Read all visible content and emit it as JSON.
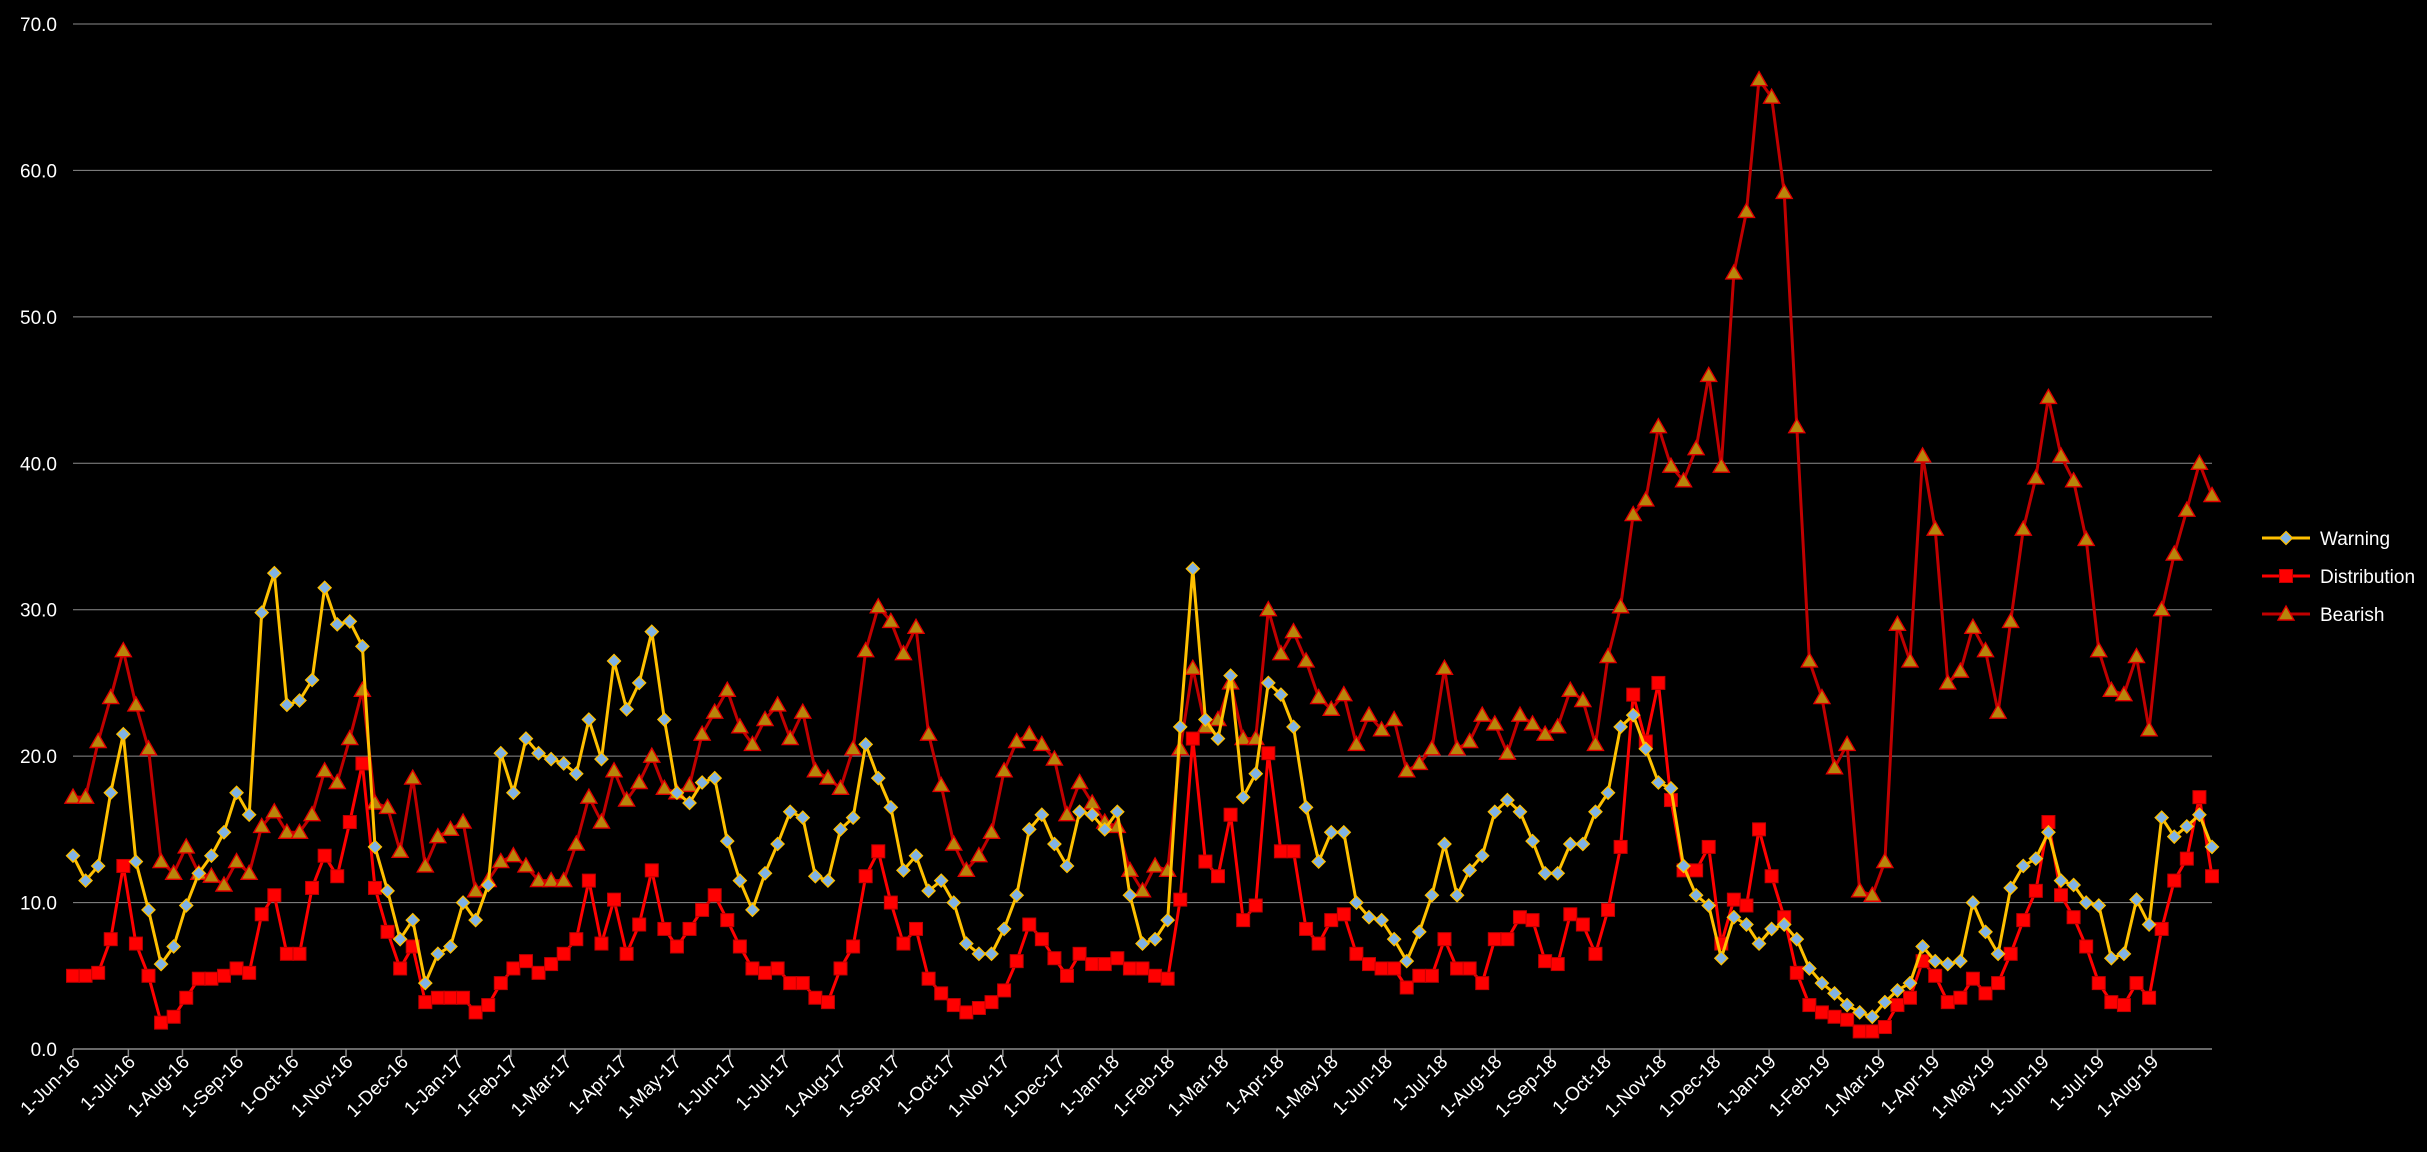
{
  "chart_data": {
    "type": "line",
    "title": "",
    "xlabel": "",
    "ylabel": "",
    "ylim": [
      0,
      70
    ],
    "yticks": [
      "0.0",
      "10.0",
      "20.0",
      "30.0",
      "40.0",
      "50.0",
      "60.0",
      "70.0"
    ],
    "grid": "horizontal",
    "legend_position": "right",
    "x_tick_labels": [
      "1-Jun-16",
      "1-Jul-16",
      "1-Aug-16",
      "1-Sep-16",
      "1-Oct-16",
      "1-Nov-16",
      "1-Dec-16",
      "1-Jan-17",
      "1-Feb-17",
      "1-Mar-17",
      "1-Apr-17",
      "1-May-17",
      "1-Jun-17",
      "1-Jul-17",
      "1-Aug-17",
      "1-Sep-17",
      "1-Oct-17",
      "1-Nov-17",
      "1-Dec-17",
      "1-Jan-18",
      "1-Feb-18",
      "1-Mar-18",
      "1-Apr-18",
      "1-May-18",
      "1-Jun-18",
      "1-Jul-18",
      "1-Aug-18",
      "1-Sep-18",
      "1-Oct-18",
      "1-Nov-18",
      "1-Dec-18",
      "1-Jan-19",
      "1-Feb-19",
      "1-Mar-19",
      "1-Apr-19",
      "1-May-19",
      "1-Jun-19",
      "1-Jul-19",
      "1-Aug-19"
    ],
    "x_tick_positions": [
      0,
      4.4,
      8.7,
      13.0,
      17.4,
      21.7,
      26.1,
      30.5,
      34.8,
      39.1,
      43.5,
      47.8,
      52.2,
      56.5,
      60.9,
      65.2,
      69.6,
      73.9,
      78.3,
      82.6,
      87.0,
      91.3,
      95.7,
      100.0,
      104.3,
      108.7,
      113.0,
      117.4,
      121.7,
      126.1,
      130.4,
      134.8,
      139.1,
      143.5,
      147.8,
      152.2,
      156.5,
      160.9,
      165.2
    ],
    "x_max": 170,
    "series": [
      {
        "name": "Warning",
        "color": "#ffc000",
        "marker": "diamond",
        "values": [
          13.2,
          11.5,
          12.5,
          17.5,
          21.5,
          12.8,
          9.5,
          5.8,
          7.0,
          9.8,
          12.0,
          13.2,
          14.8,
          17.5,
          16.0,
          29.8,
          32.5,
          23.5,
          23.8,
          25.2,
          31.5,
          29.0,
          29.2,
          27.5,
          13.8,
          10.8,
          7.5,
          8.8,
          4.5,
          6.5,
          7.0,
          10.0,
          8.8,
          11.2,
          20.2,
          17.5,
          21.2,
          20.2,
          19.8,
          19.5,
          18.8,
          22.5,
          19.8,
          26.5,
          23.2,
          25.0,
          28.5,
          22.5,
          17.5,
          16.8,
          18.2,
          18.5,
          14.2,
          11.5,
          9.5,
          12.0,
          14.0,
          16.2,
          15.8,
          11.8,
          11.5,
          15.0,
          15.8,
          20.8,
          18.5,
          16.5,
          12.2,
          13.2,
          10.8,
          11.5,
          10.0,
          7.2,
          6.5,
          6.5,
          8.2,
          10.5,
          15.0,
          16.0,
          14.0,
          12.5,
          16.2,
          16.0,
          15.0,
          16.2,
          10.5,
          7.2,
          7.5,
          8.8,
          22.0,
          32.8,
          22.5,
          21.2,
          25.5,
          17.2,
          18.8,
          25.0,
          24.2,
          22.0,
          16.5,
          12.8,
          14.8,
          14.8,
          10.0,
          9.0,
          8.8,
          7.5,
          6.0,
          8.0,
          10.5,
          14.0,
          10.5,
          12.2,
          13.2,
          16.2,
          17.0,
          16.2,
          14.2,
          12.0,
          12.0,
          14.0,
          14.0,
          16.2,
          17.5,
          22.0,
          22.8,
          20.5,
          18.2,
          17.8,
          12.5,
          10.5,
          9.8,
          6.2,
          9.0,
          8.5,
          7.2,
          8.2,
          8.5,
          7.5,
          5.5,
          4.5,
          3.8,
          3.0,
          2.5,
          2.2,
          3.2,
          4.0,
          4.5,
          7.0,
          6.0,
          5.8,
          6.0,
          10.0,
          8.0,
          6.5,
          11.0,
          12.5,
          13.0,
          14.8,
          11.5,
          11.2,
          10.0,
          9.8,
          6.2,
          6.5,
          10.2,
          8.5,
          15.8,
          14.5,
          15.2,
          16.0,
          13.8
        ]
      },
      {
        "name": "Distribution",
        "color": "#ff0000",
        "marker": "square",
        "values": [
          5.0,
          5.0,
          5.2,
          7.5,
          12.5,
          7.2,
          5.0,
          1.8,
          2.2,
          3.5,
          4.8,
          4.8,
          5.0,
          5.5,
          5.2,
          9.2,
          10.5,
          6.5,
          6.5,
          11.0,
          13.2,
          11.8,
          15.5,
          19.5,
          11.0,
          8.0,
          5.5,
          7.0,
          3.2,
          3.5,
          3.5,
          3.5,
          2.5,
          3.0,
          4.5,
          5.5,
          6.0,
          5.2,
          5.8,
          6.5,
          7.5,
          11.5,
          7.2,
          10.2,
          6.5,
          8.5,
          12.2,
          8.2,
          7.0,
          8.2,
          9.5,
          10.5,
          8.8,
          7.0,
          5.5,
          5.2,
          5.5,
          4.5,
          4.5,
          3.5,
          3.2,
          5.5,
          7.0,
          11.8,
          13.5,
          10.0,
          7.2,
          8.2,
          4.8,
          3.8,
          3.0,
          2.5,
          2.8,
          3.2,
          4.0,
          6.0,
          8.5,
          7.5,
          6.2,
          5.0,
          6.5,
          5.8,
          5.8,
          6.2,
          5.5,
          5.5,
          5.0,
          4.8,
          10.2,
          21.2,
          12.8,
          11.8,
          16.0,
          8.8,
          9.8,
          20.2,
          13.5,
          13.5,
          8.2,
          7.2,
          8.8,
          9.2,
          6.5,
          5.8,
          5.5,
          5.5,
          4.2,
          5.0,
          5.0,
          7.5,
          5.5,
          5.5,
          4.5,
          7.5,
          7.5,
          9.0,
          8.8,
          6.0,
          5.8,
          9.2,
          8.5,
          6.5,
          9.5,
          13.8,
          24.2,
          21.0,
          25.0,
          17.0,
          12.2,
          12.2,
          13.8,
          7.2,
          10.2,
          9.8,
          15.0,
          11.8,
          9.0,
          5.2,
          3.0,
          2.5,
          2.2,
          2.0,
          1.2,
          1.2,
          1.5,
          3.0,
          3.5,
          6.0,
          5.0,
          3.2,
          3.5,
          4.8,
          3.8,
          4.5,
          6.5,
          8.8,
          10.8,
          15.5,
          10.5,
          9.0,
          7.0,
          4.5,
          3.2,
          3.0,
          4.5,
          3.5,
          8.2,
          11.5,
          13.0,
          17.2,
          11.8
        ]
      },
      {
        "name": "Bearish",
        "color": "#c00000",
        "marker": "triangle",
        "values": [
          17.2,
          17.2,
          21.0,
          24.0,
          27.2,
          23.5,
          20.5,
          12.8,
          12.0,
          13.8,
          12.0,
          11.8,
          11.2,
          12.8,
          12.0,
          15.2,
          16.2,
          14.8,
          14.8,
          16.0,
          19.0,
          18.2,
          21.2,
          24.5,
          16.8,
          16.5,
          13.5,
          18.5,
          12.5,
          14.5,
          15.0,
          15.5,
          10.8,
          11.5,
          12.8,
          13.2,
          12.5,
          11.5,
          11.5,
          11.5,
          14.0,
          17.2,
          15.5,
          19.0,
          17.0,
          18.2,
          20.0,
          17.8,
          17.5,
          18.0,
          21.5,
          23.0,
          24.5,
          22.0,
          20.8,
          22.5,
          23.5,
          21.2,
          23.0,
          19.0,
          18.5,
          17.8,
          20.5,
          27.2,
          30.2,
          29.2,
          27.0,
          28.8,
          21.5,
          18.0,
          14.0,
          12.2,
          13.2,
          14.8,
          19.0,
          21.0,
          21.5,
          20.8,
          19.8,
          16.0,
          18.2,
          16.8,
          15.5,
          15.2,
          12.2,
          10.8,
          12.5,
          12.2,
          20.5,
          26.0,
          22.0,
          22.5,
          25.0,
          21.2,
          21.2,
          30.0,
          27.0,
          28.5,
          26.5,
          24.0,
          23.2,
          24.2,
          20.8,
          22.8,
          21.8,
          22.5,
          19.0,
          19.5,
          20.5,
          26.0,
          20.5,
          21.0,
          22.8,
          22.2,
          20.2,
          22.8,
          22.2,
          21.5,
          22.0,
          24.5,
          23.8,
          20.8,
          26.8,
          30.2,
          36.5,
          37.5,
          42.5,
          39.8,
          38.8,
          41.0,
          46.0,
          39.8,
          53.0,
          57.2,
          66.2,
          65.0,
          58.5,
          42.5,
          26.5,
          24.0,
          19.2,
          20.8,
          10.8,
          10.5,
          12.8,
          29.0,
          26.5,
          40.5,
          35.5,
          25.0,
          25.8,
          28.8,
          27.2,
          23.0,
          29.2,
          35.5,
          39.0,
          44.5,
          40.5,
          38.8,
          34.8,
          27.2,
          24.5,
          24.2,
          26.8,
          21.8,
          30.0,
          33.8,
          36.8,
          40.0,
          37.8
        ]
      }
    ]
  }
}
